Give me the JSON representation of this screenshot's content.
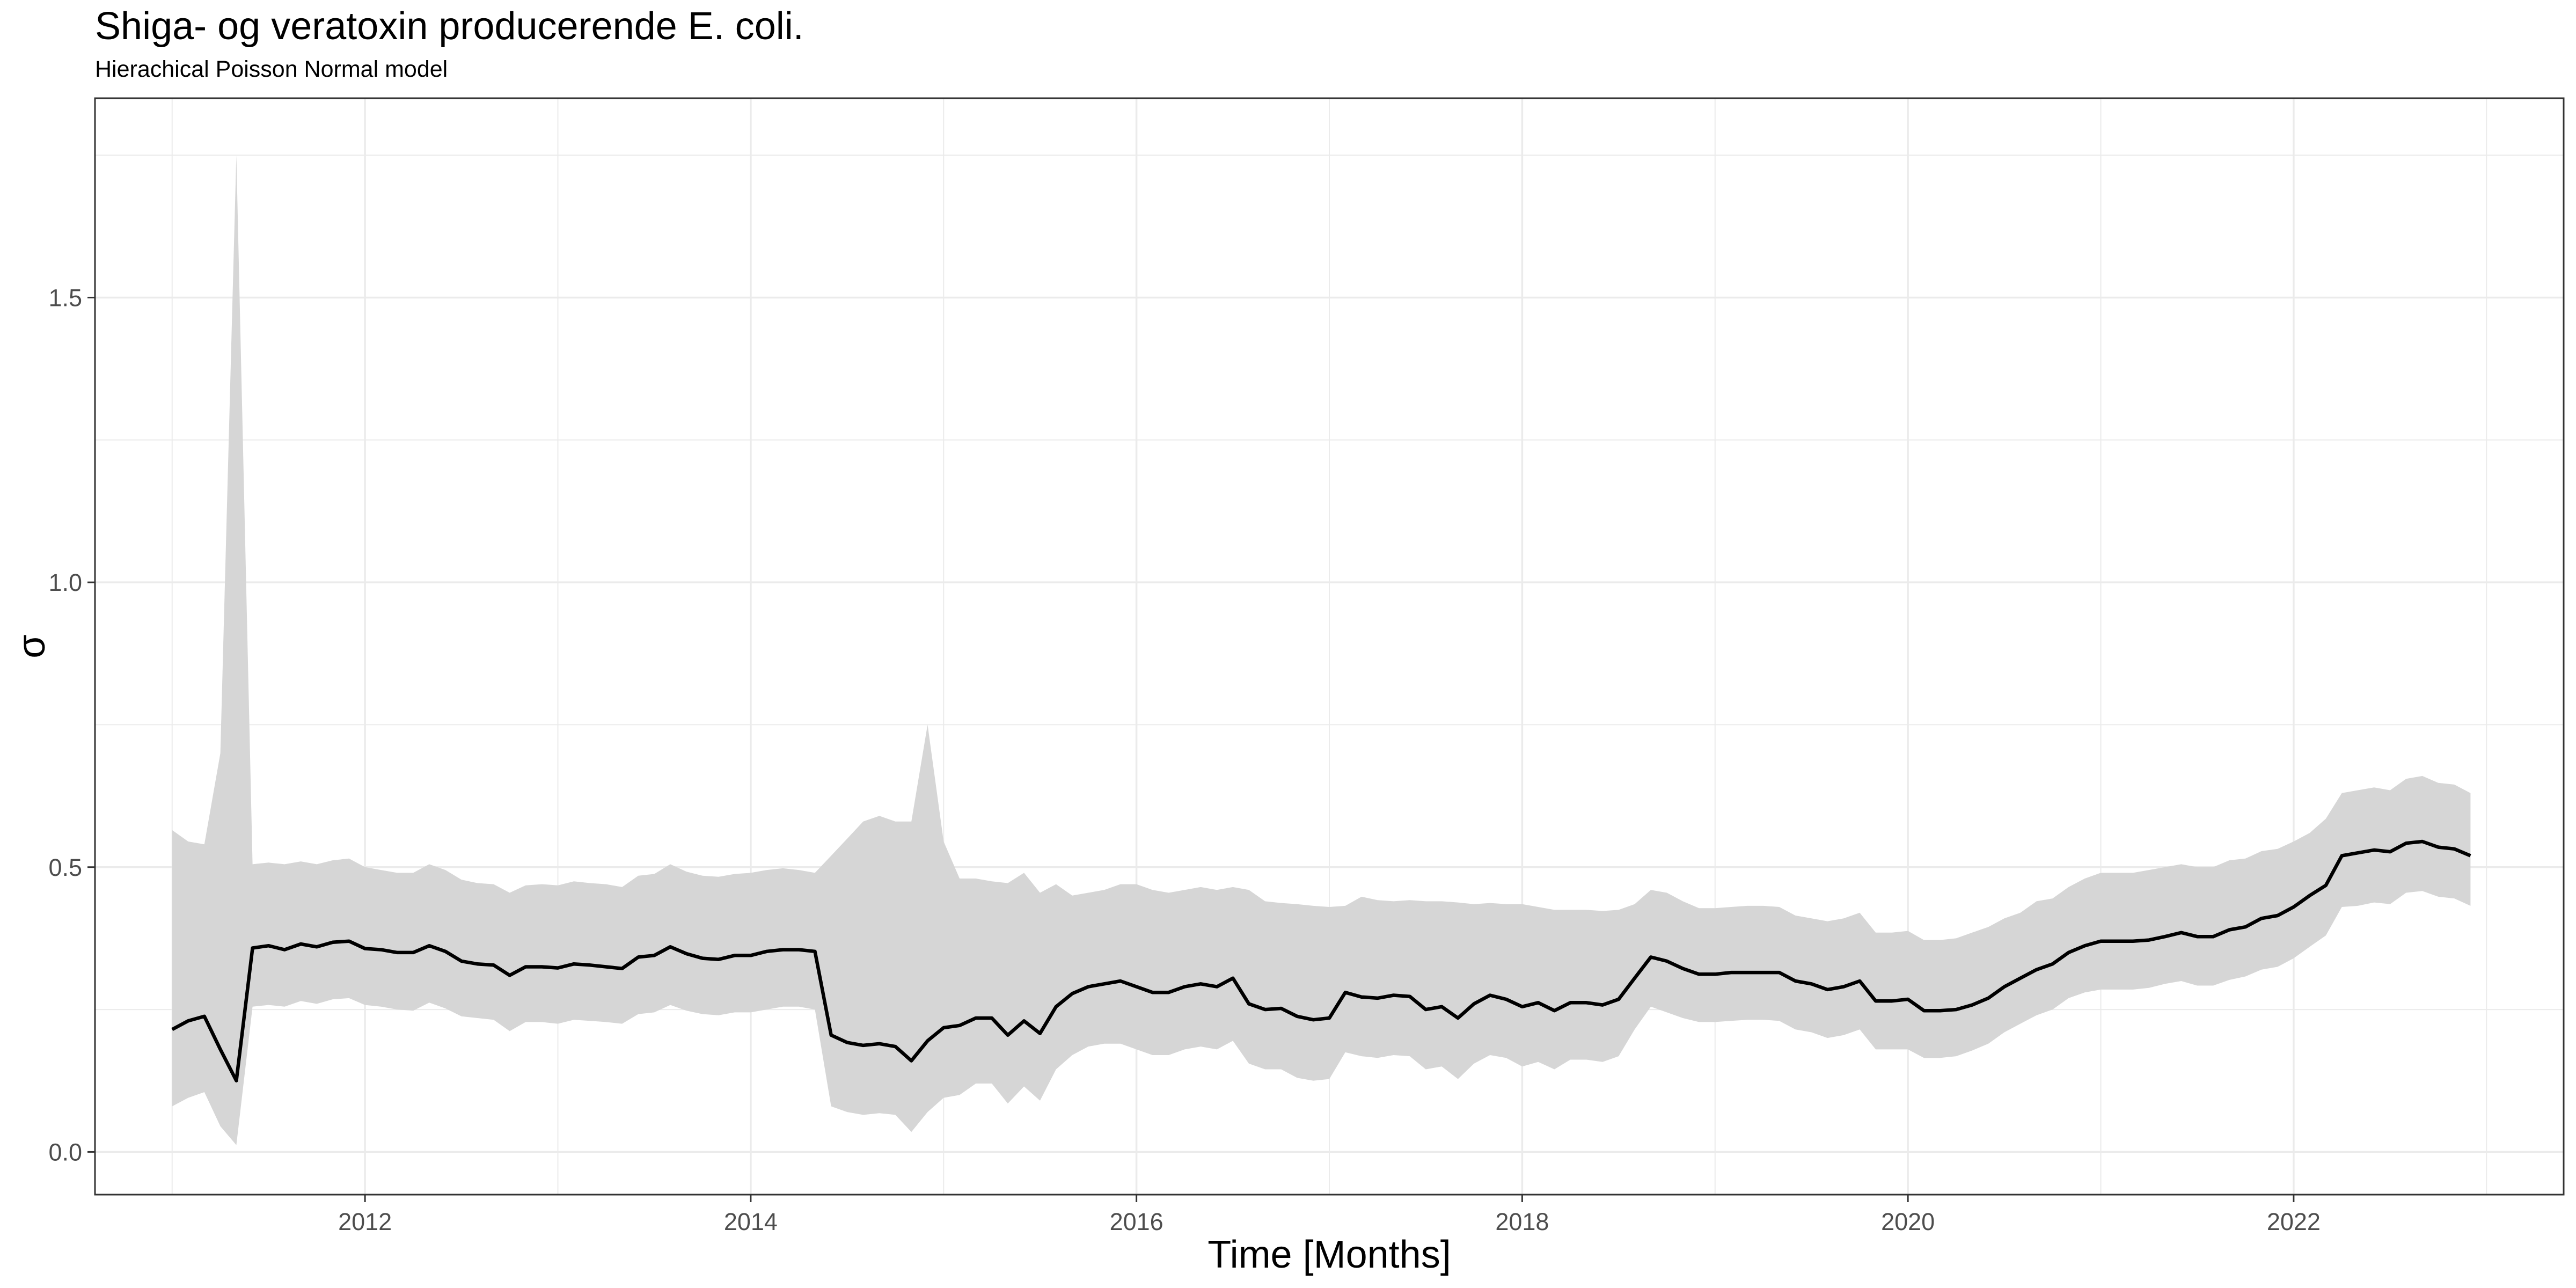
{
  "chart_data": {
    "type": "line",
    "title": "Shiga- og veratoxin producerende E. coli.",
    "subtitle": "Hierachical Poisson Normal model",
    "xlabel": "Time [Months]",
    "ylabel": "σ",
    "xlim": [
      2010.6,
      2023.4
    ],
    "ylim": [
      -0.075,
      1.85
    ],
    "x_ticks": [
      2012,
      2014,
      2016,
      2018,
      2020,
      2022
    ],
    "y_ticks": [
      0.0,
      0.5,
      1.0,
      1.5
    ],
    "y_tick_labels": [
      "0.0",
      "0.5",
      "1.0",
      "1.5"
    ],
    "grid": true,
    "legend": "none",
    "colors": {
      "line": "#000000",
      "band": "#d6d6d6",
      "grid": "#ebebeb",
      "panel_border": "#333333"
    },
    "series": [
      {
        "kind": "median",
        "x": [
          2011.0,
          2011.083,
          2011.167,
          2011.25,
          2011.333,
          2011.417,
          2011.5,
          2011.583,
          2011.667,
          2011.75,
          2011.833,
          2011.917,
          2012.0,
          2012.083,
          2012.167,
          2012.25,
          2012.333,
          2012.417,
          2012.5,
          2012.583,
          2012.667,
          2012.75,
          2012.833,
          2012.917,
          2013.0,
          2013.083,
          2013.167,
          2013.25,
          2013.333,
          2013.417,
          2013.5,
          2013.583,
          2013.667,
          2013.75,
          2013.833,
          2013.917,
          2014.0,
          2014.083,
          2014.167,
          2014.25,
          2014.333,
          2014.417,
          2014.5,
          2014.583,
          2014.667,
          2014.75,
          2014.833,
          2014.917,
          2015.0,
          2015.083,
          2015.167,
          2015.25,
          2015.333,
          2015.417,
          2015.5,
          2015.583,
          2015.667,
          2015.75,
          2015.833,
          2015.917,
          2016.0,
          2016.083,
          2016.167,
          2016.25,
          2016.333,
          2016.417,
          2016.5,
          2016.583,
          2016.667,
          2016.75,
          2016.833,
          2016.917,
          2017.0,
          2017.083,
          2017.167,
          2017.25,
          2017.333,
          2017.417,
          2017.5,
          2017.583,
          2017.667,
          2017.75,
          2017.833,
          2017.917,
          2018.0,
          2018.083,
          2018.167,
          2018.25,
          2018.333,
          2018.417,
          2018.5,
          2018.583,
          2018.667,
          2018.75,
          2018.833,
          2018.917,
          2019.0,
          2019.083,
          2019.167,
          2019.25,
          2019.333,
          2019.417,
          2019.5,
          2019.583,
          2019.667,
          2019.75,
          2019.833,
          2019.917,
          2020.0,
          2020.083,
          2020.167,
          2020.25,
          2020.333,
          2020.417,
          2020.5,
          2020.583,
          2020.667,
          2020.75,
          2020.833,
          2020.917,
          2021.0,
          2021.083,
          2021.167,
          2021.25,
          2021.333,
          2021.417,
          2021.5,
          2021.583,
          2021.667,
          2021.75,
          2021.833,
          2021.917,
          2022.0,
          2022.083,
          2022.167,
          2022.25,
          2022.333,
          2022.417,
          2022.5,
          2022.583,
          2022.667,
          2022.75,
          2022.833,
          2022.917
        ],
        "y": [
          0.215,
          0.23,
          0.238,
          0.18,
          0.125,
          0.358,
          0.362,
          0.355,
          0.365,
          0.36,
          0.368,
          0.37,
          0.357,
          0.355,
          0.35,
          0.35,
          0.362,
          0.352,
          0.335,
          0.33,
          0.328,
          0.31,
          0.325,
          0.325,
          0.323,
          0.33,
          0.328,
          0.325,
          0.322,
          0.342,
          0.345,
          0.36,
          0.348,
          0.34,
          0.338,
          0.345,
          0.345,
          0.352,
          0.355,
          0.355,
          0.352,
          0.205,
          0.192,
          0.187,
          0.19,
          0.185,
          0.16,
          0.195,
          0.218,
          0.222,
          0.235,
          0.235,
          0.205,
          0.23,
          0.208,
          0.255,
          0.278,
          0.29,
          0.295,
          0.3,
          0.29,
          0.28,
          0.28,
          0.29,
          0.295,
          0.29,
          0.305,
          0.26,
          0.25,
          0.252,
          0.238,
          0.232,
          0.235,
          0.28,
          0.272,
          0.27,
          0.275,
          0.273,
          0.25,
          0.255,
          0.235,
          0.26,
          0.275,
          0.268,
          0.255,
          0.262,
          0.248,
          0.262,
          0.262,
          0.258,
          0.268,
          0.305,
          0.342,
          0.335,
          0.322,
          0.312,
          0.312,
          0.315,
          0.315,
          0.315,
          0.315,
          0.3,
          0.295,
          0.285,
          0.29,
          0.3,
          0.265,
          0.265,
          0.268,
          0.248,
          0.248,
          0.25,
          0.258,
          0.27,
          0.29,
          0.305,
          0.32,
          0.33,
          0.35,
          0.362,
          0.37,
          0.37,
          0.37,
          0.372,
          0.378,
          0.385,
          0.378,
          0.378,
          0.39,
          0.395,
          0.41,
          0.415,
          0.43,
          0.45,
          0.468,
          0.52,
          0.525,
          0.53,
          0.527,
          0.542,
          0.545,
          0.535,
          0.532,
          0.52
        ]
      },
      {
        "kind": "upper",
        "x": [
          2011.0,
          2011.083,
          2011.167,
          2011.25,
          2011.333,
          2011.417,
          2011.5,
          2011.583,
          2011.667,
          2011.75,
          2011.833,
          2011.917,
          2012.0,
          2012.083,
          2012.167,
          2012.25,
          2012.333,
          2012.417,
          2012.5,
          2012.583,
          2012.667,
          2012.75,
          2012.833,
          2012.917,
          2013.0,
          2013.083,
          2013.167,
          2013.25,
          2013.333,
          2013.417,
          2013.5,
          2013.583,
          2013.667,
          2013.75,
          2013.833,
          2013.917,
          2014.0,
          2014.083,
          2014.167,
          2014.25,
          2014.333,
          2014.417,
          2014.5,
          2014.583,
          2014.667,
          2014.75,
          2014.833,
          2014.917,
          2015.0,
          2015.083,
          2015.167,
          2015.25,
          2015.333,
          2015.417,
          2015.5,
          2015.583,
          2015.667,
          2015.75,
          2015.833,
          2015.917,
          2016.0,
          2016.083,
          2016.167,
          2016.25,
          2016.333,
          2016.417,
          2016.5,
          2016.583,
          2016.667,
          2016.75,
          2016.833,
          2016.917,
          2017.0,
          2017.083,
          2017.167,
          2017.25,
          2017.333,
          2017.417,
          2017.5,
          2017.583,
          2017.667,
          2017.75,
          2017.833,
          2017.917,
          2018.0,
          2018.083,
          2018.167,
          2018.25,
          2018.333,
          2018.417,
          2018.5,
          2018.583,
          2018.667,
          2018.75,
          2018.833,
          2018.917,
          2019.0,
          2019.083,
          2019.167,
          2019.25,
          2019.333,
          2019.417,
          2019.5,
          2019.583,
          2019.667,
          2019.75,
          2019.833,
          2019.917,
          2020.0,
          2020.083,
          2020.167,
          2020.25,
          2020.333,
          2020.417,
          2020.5,
          2020.583,
          2020.667,
          2020.75,
          2020.833,
          2020.917,
          2021.0,
          2021.083,
          2021.167,
          2021.25,
          2021.333,
          2021.417,
          2021.5,
          2021.583,
          2021.667,
          2021.75,
          2021.833,
          2021.917,
          2022.0,
          2022.083,
          2022.167,
          2022.25,
          2022.333,
          2022.417,
          2022.5,
          2022.583,
          2022.667,
          2022.75,
          2022.833,
          2022.917
        ],
        "y": [
          0.565,
          0.545,
          0.54,
          0.7,
          1.75,
          0.505,
          0.508,
          0.505,
          0.51,
          0.505,
          0.512,
          0.515,
          0.5,
          0.495,
          0.49,
          0.49,
          0.505,
          0.495,
          0.478,
          0.472,
          0.47,
          0.455,
          0.468,
          0.47,
          0.468,
          0.475,
          0.472,
          0.47,
          0.465,
          0.485,
          0.488,
          0.505,
          0.492,
          0.485,
          0.483,
          0.488,
          0.49,
          0.495,
          0.498,
          0.495,
          0.49,
          0.52,
          0.55,
          0.58,
          0.59,
          0.58,
          0.58,
          0.75,
          0.545,
          0.48,
          0.48,
          0.475,
          0.472,
          0.49,
          0.455,
          0.47,
          0.45,
          0.455,
          0.46,
          0.47,
          0.47,
          0.46,
          0.455,
          0.46,
          0.465,
          0.46,
          0.465,
          0.46,
          0.44,
          0.437,
          0.435,
          0.432,
          0.43,
          0.432,
          0.448,
          0.442,
          0.44,
          0.442,
          0.44,
          0.44,
          0.438,
          0.435,
          0.437,
          0.435,
          0.435,
          0.43,
          0.425,
          0.425,
          0.425,
          0.423,
          0.425,
          0.435,
          0.46,
          0.455,
          0.44,
          0.428,
          0.428,
          0.43,
          0.432,
          0.432,
          0.43,
          0.415,
          0.41,
          0.405,
          0.41,
          0.42,
          0.385,
          0.385,
          0.388,
          0.372,
          0.372,
          0.375,
          0.385,
          0.395,
          0.41,
          0.42,
          0.44,
          0.445,
          0.465,
          0.48,
          0.49,
          0.49,
          0.49,
          0.495,
          0.5,
          0.505,
          0.5,
          0.5,
          0.512,
          0.515,
          0.528,
          0.532,
          0.545,
          0.56,
          0.585,
          0.63,
          0.635,
          0.64,
          0.635,
          0.655,
          0.66,
          0.648,
          0.645,
          0.63
        ]
      },
      {
        "kind": "lower",
        "x": [
          2011.0,
          2011.083,
          2011.167,
          2011.25,
          2011.333,
          2011.417,
          2011.5,
          2011.583,
          2011.667,
          2011.75,
          2011.833,
          2011.917,
          2012.0,
          2012.083,
          2012.167,
          2012.25,
          2012.333,
          2012.417,
          2012.5,
          2012.583,
          2012.667,
          2012.75,
          2012.833,
          2012.917,
          2013.0,
          2013.083,
          2013.167,
          2013.25,
          2013.333,
          2013.417,
          2013.5,
          2013.583,
          2013.667,
          2013.75,
          2013.833,
          2013.917,
          2014.0,
          2014.083,
          2014.167,
          2014.25,
          2014.333,
          2014.417,
          2014.5,
          2014.583,
          2014.667,
          2014.75,
          2014.833,
          2014.917,
          2015.0,
          2015.083,
          2015.167,
          2015.25,
          2015.333,
          2015.417,
          2015.5,
          2015.583,
          2015.667,
          2015.75,
          2015.833,
          2015.917,
          2016.0,
          2016.083,
          2016.167,
          2016.25,
          2016.333,
          2016.417,
          2016.5,
          2016.583,
          2016.667,
          2016.75,
          2016.833,
          2016.917,
          2017.0,
          2017.083,
          2017.167,
          2017.25,
          2017.333,
          2017.417,
          2017.5,
          2017.583,
          2017.667,
          2017.75,
          2017.833,
          2017.917,
          2018.0,
          2018.083,
          2018.167,
          2018.25,
          2018.333,
          2018.417,
          2018.5,
          2018.583,
          2018.667,
          2018.75,
          2018.833,
          2018.917,
          2019.0,
          2019.083,
          2019.167,
          2019.25,
          2019.333,
          2019.417,
          2019.5,
          2019.583,
          2019.667,
          2019.75,
          2019.833,
          2019.917,
          2020.0,
          2020.083,
          2020.167,
          2020.25,
          2020.333,
          2020.417,
          2020.5,
          2020.583,
          2020.667,
          2020.75,
          2020.833,
          2020.917,
          2021.0,
          2021.083,
          2021.167,
          2021.25,
          2021.333,
          2021.417,
          2021.5,
          2021.583,
          2021.667,
          2021.75,
          2021.833,
          2021.917,
          2022.0,
          2022.083,
          2022.167,
          2022.25,
          2022.333,
          2022.417,
          2022.5,
          2022.583,
          2022.667,
          2022.75,
          2022.833,
          2022.917
        ],
        "y": [
          0.08,
          0.095,
          0.105,
          0.045,
          0.012,
          0.255,
          0.258,
          0.255,
          0.265,
          0.26,
          0.268,
          0.27,
          0.258,
          0.255,
          0.25,
          0.248,
          0.262,
          0.252,
          0.238,
          0.235,
          0.232,
          0.212,
          0.228,
          0.228,
          0.225,
          0.232,
          0.23,
          0.228,
          0.225,
          0.242,
          0.245,
          0.258,
          0.248,
          0.242,
          0.24,
          0.245,
          0.245,
          0.25,
          0.255,
          0.255,
          0.25,
          0.08,
          0.07,
          0.065,
          0.068,
          0.065,
          0.035,
          0.07,
          0.095,
          0.1,
          0.12,
          0.12,
          0.085,
          0.115,
          0.09,
          0.145,
          0.17,
          0.185,
          0.19,
          0.19,
          0.18,
          0.17,
          0.17,
          0.18,
          0.185,
          0.18,
          0.195,
          0.155,
          0.145,
          0.145,
          0.13,
          0.125,
          0.128,
          0.175,
          0.168,
          0.165,
          0.17,
          0.168,
          0.145,
          0.15,
          0.128,
          0.155,
          0.17,
          0.165,
          0.15,
          0.158,
          0.145,
          0.162,
          0.162,
          0.158,
          0.168,
          0.215,
          0.255,
          0.245,
          0.235,
          0.228,
          0.228,
          0.23,
          0.232,
          0.232,
          0.23,
          0.215,
          0.21,
          0.2,
          0.205,
          0.215,
          0.18,
          0.18,
          0.18,
          0.165,
          0.165,
          0.168,
          0.178,
          0.19,
          0.21,
          0.225,
          0.24,
          0.25,
          0.27,
          0.28,
          0.285,
          0.285,
          0.285,
          0.288,
          0.295,
          0.3,
          0.292,
          0.292,
          0.302,
          0.308,
          0.32,
          0.325,
          0.34,
          0.36,
          0.38,
          0.43,
          0.432,
          0.438,
          0.435,
          0.455,
          0.458,
          0.448,
          0.445,
          0.432
        ]
      }
    ]
  }
}
